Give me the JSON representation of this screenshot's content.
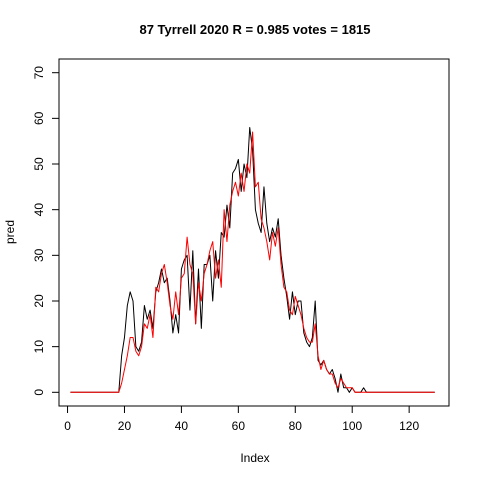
{
  "chart_data": {
    "type": "line",
    "title": "87 Tyrrell 2020 R = 0.985 votes = 1815",
    "xlabel": "Index",
    "ylabel": "pred",
    "xlim": [
      -3,
      134
    ],
    "ylim": [
      -3,
      73
    ],
    "xticks": [
      0,
      20,
      40,
      60,
      80,
      100,
      120
    ],
    "yticks": [
      0,
      10,
      20,
      30,
      40,
      50,
      60,
      70
    ],
    "grid": false,
    "series": [
      {
        "color": "#000000",
        "values": [
          0,
          0,
          0,
          0,
          0,
          0,
          0,
          0,
          0,
          0,
          0,
          0,
          0,
          0,
          0,
          0,
          0,
          0,
          8,
          12,
          19,
          22,
          20,
          10,
          9,
          11,
          19,
          16,
          18,
          14,
          22,
          24,
          27,
          24,
          25,
          20,
          13,
          17,
          13,
          27,
          29,
          30,
          18,
          31,
          15,
          27,
          14,
          28,
          28,
          30,
          20,
          31,
          25,
          35,
          34,
          41,
          36,
          48,
          49,
          51,
          44,
          50,
          47,
          58,
          53,
          40,
          37,
          35,
          45,
          37,
          33,
          36,
          34,
          38,
          30,
          25,
          21,
          16,
          22,
          17,
          20,
          20,
          13,
          11,
          10,
          12,
          20,
          7,
          6,
          7,
          5,
          4,
          5,
          3,
          0,
          4,
          1,
          1,
          0,
          1,
          0,
          0,
          0,
          1,
          0,
          0,
          0,
          0,
          0,
          0,
          0,
          0,
          0,
          0,
          0,
          0,
          0,
          0,
          0,
          0,
          0,
          0,
          0,
          0,
          0,
          0,
          0,
          0,
          0
        ]
      },
      {
        "color": "#ff0000",
        "values": [
          0,
          0,
          0,
          0,
          0,
          0,
          0,
          0,
          0,
          0,
          0,
          0,
          0,
          0,
          0,
          0,
          0,
          0,
          2,
          5,
          8,
          12,
          12,
          9,
          8,
          10,
          15,
          14,
          17,
          12,
          23,
          22,
          26,
          28,
          24,
          19,
          16,
          22,
          17,
          25,
          26,
          34,
          28,
          26,
          15,
          24,
          20,
          26,
          28,
          31,
          33,
          25,
          29,
          23,
          40,
          33,
          41,
          44,
          46,
          43,
          48,
          44,
          50,
          48,
          57,
          45,
          46,
          38,
          36,
          33,
          29,
          35,
          32,
          36,
          28,
          23,
          22,
          18,
          17,
          21,
          19,
          17,
          14,
          12,
          11,
          11,
          15,
          8,
          5,
          7,
          5,
          4,
          4,
          2,
          1,
          3,
          2,
          1,
          1,
          1,
          0,
          0,
          0,
          0,
          0,
          0,
          0,
          0,
          0,
          0,
          0,
          0,
          0,
          0,
          0,
          0,
          0,
          0,
          0,
          0,
          0,
          0,
          0,
          0,
          0,
          0,
          0,
          0,
          0
        ]
      }
    ]
  }
}
